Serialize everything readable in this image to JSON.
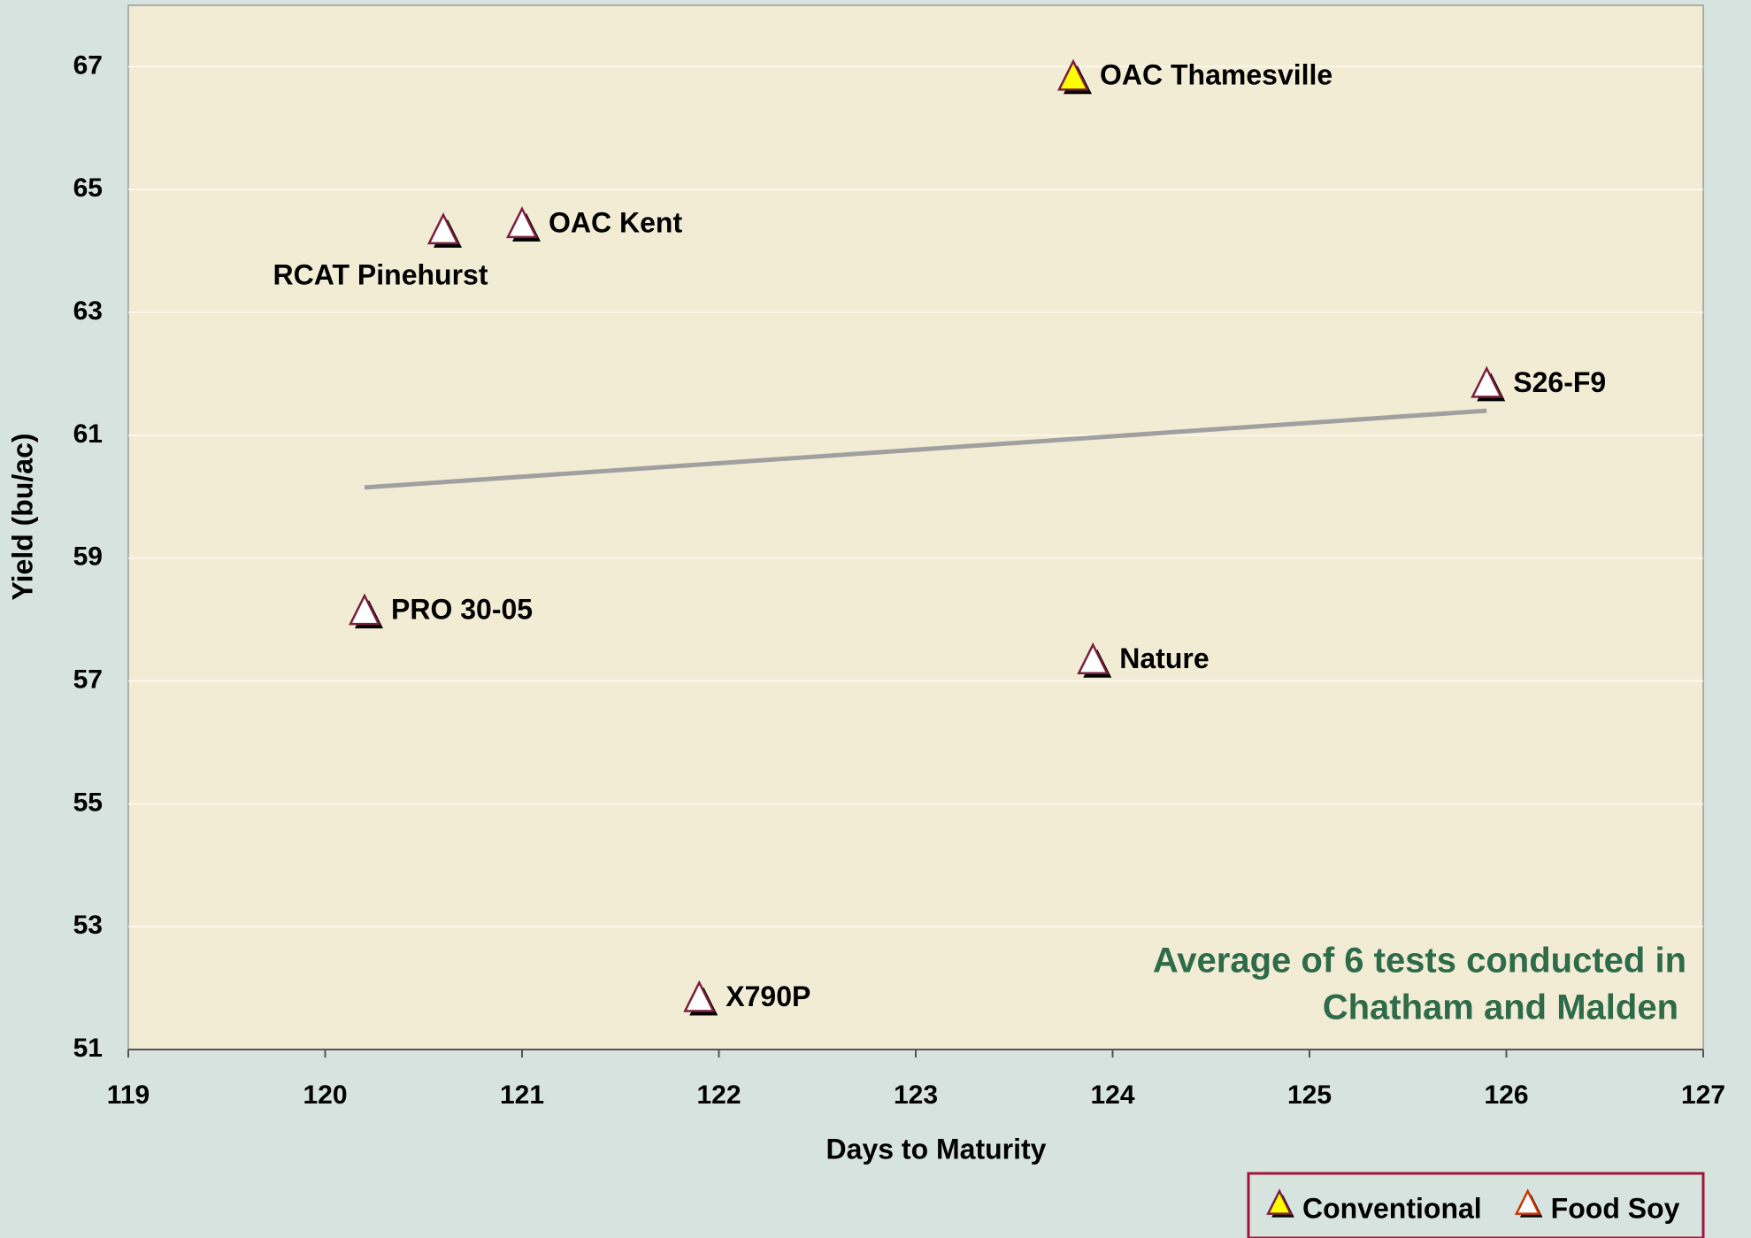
{
  "chart_data": {
    "type": "scatter",
    "xlabel": "Days to Maturity",
    "ylabel": "Yield (bu/ac)",
    "xlim": [
      119,
      127
    ],
    "xticks": [
      119,
      120,
      121,
      122,
      123,
      124,
      125,
      126,
      127
    ],
    "ylim": [
      51,
      68
    ],
    "yticks": [
      51,
      53,
      55,
      57,
      59,
      61,
      63,
      65,
      67
    ],
    "grid": true,
    "legend": "bottom-right",
    "series": [
      {
        "name": "Conventional",
        "color": "#ffff00",
        "edge": "#7a1f3d",
        "x": [
          123.8
        ],
        "values": [
          66.8
        ],
        "labels": [
          "OAC Thamesville"
        ]
      },
      {
        "name": "Food Soy",
        "color": "#ffffff",
        "edge": "#7a1f3d",
        "x": [
          120.6,
          121.0,
          125.9,
          120.2,
          123.9,
          121.9
        ],
        "values": [
          64.3,
          64.4,
          61.8,
          58.1,
          57.3,
          51.8
        ],
        "labels": [
          "RCAT Pinehurst",
          "OAC Kent",
          "S26-F9",
          "PRO 30-05",
          "Nature",
          "X790P"
        ]
      }
    ],
    "trendline": {
      "color": "#a0a0a0",
      "x": [
        120.2,
        125.9
      ],
      "values": [
        60.15,
        61.4
      ]
    },
    "annotation": [
      "Average of 6 tests conducted in",
      "Chatham and Malden"
    ]
  }
}
